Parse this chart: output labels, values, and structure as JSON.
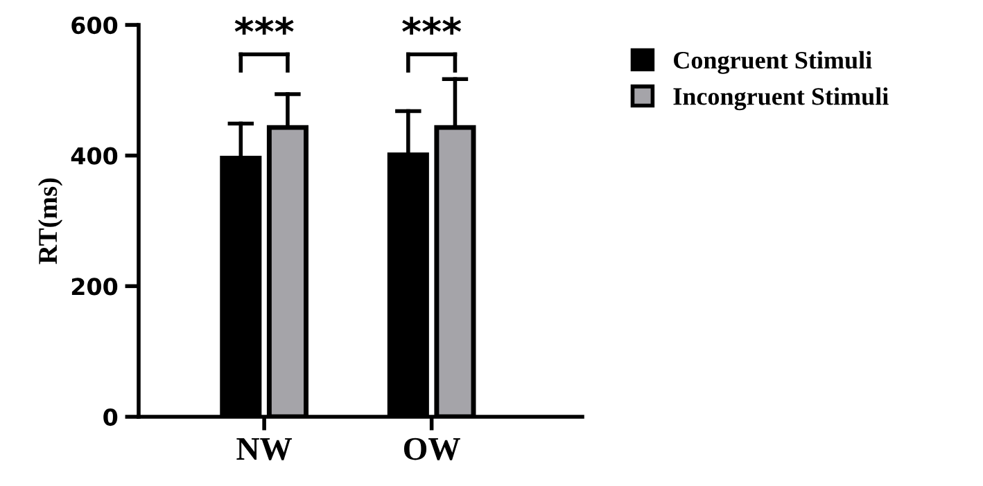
{
  "chart_data": {
    "type": "bar",
    "ylabel": "RT(ms)",
    "categories": [
      "NW",
      "OW"
    ],
    "series": [
      {
        "name": "Congruent Stimuli",
        "color": "#000000",
        "values": [
          396,
          401
        ],
        "errors": [
          [
            396,
            449
          ],
          [
            401,
            468
          ]
        ]
      },
      {
        "name": "Incongruent Stimuli",
        "color": "#a5a4a9",
        "values": [
          443,
          443
        ],
        "errors": [
          [
            443,
            494
          ],
          [
            443,
            517
          ]
        ]
      }
    ],
    "ylim": [
      0,
      600
    ],
    "yticks": [
      0,
      200,
      400,
      600
    ],
    "grid": false,
    "legend": "top right",
    "annotations": [
      "***",
      "***"
    ]
  }
}
